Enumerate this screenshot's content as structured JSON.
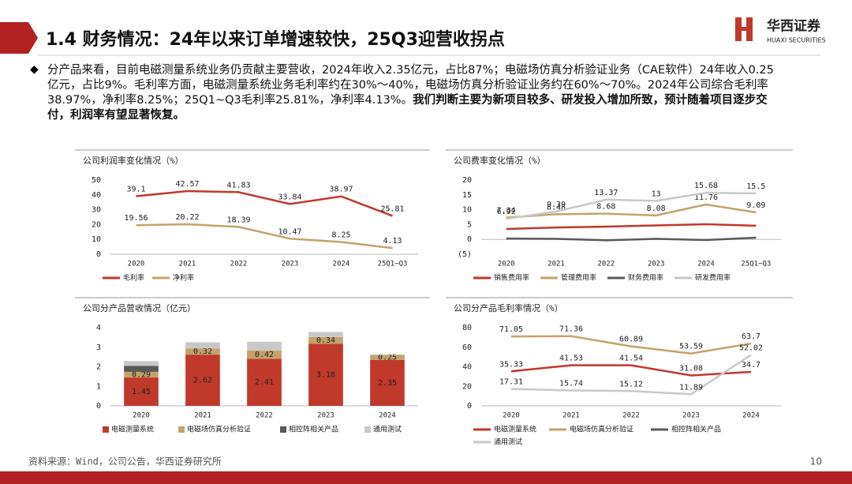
{
  "header": {
    "title": "1.4 财务情况：24年以来订单增速较快，25Q3迎营收拐点",
    "logo_cn": "华西证券",
    "logo_en": "HUAXI SECURITIES"
  },
  "bullet": {
    "body": "分产品来看，目前电磁测量系统业务仍贡献主要营收，2024年收入2.35亿元，占比87%；电磁场仿真分析验证业务（CAE软件）24年收入0.25亿元，占比9%。毛利率方面，电磁测量系统业务毛利率约在30%～40%，电磁场仿真分析验证业务约在60%～70%。2024年公司综合毛利率38.97%，净利率8.25%；25Q1~Q3毛利率25.81%，净利率4.13%。",
    "body_bold": "我们判断主要为新项目较多、研发投入增加所致，预计随着项目逐步交付，利润率有望显著恢复。"
  },
  "footer": {
    "source": "资料来源：Wind，公司公告，华西证券研究所",
    "page": "10"
  },
  "chart_data": [
    {
      "type": "line",
      "title": "公司利润率变化情况（%）",
      "categories": [
        "2020",
        "2021",
        "2022",
        "2023",
        "2024",
        "25Q1~Q3"
      ],
      "series": [
        {
          "name": "毛利率",
          "color": "#c0392b",
          "values": [
            39.1,
            42.57,
            41.83,
            33.84,
            38.97,
            25.81
          ]
        },
        {
          "name": "净利率",
          "color": "#c4a26a",
          "values": [
            19.56,
            20.22,
            18.39,
            10.47,
            8.25,
            4.13
          ]
        }
      ],
      "ylim": [
        0,
        50
      ],
      "yticks": [
        0,
        10,
        20,
        30,
        40,
        50
      ]
    },
    {
      "type": "line",
      "title": "公司费率变化情况（%）",
      "categories": [
        "2020",
        "2021",
        "2022",
        "2023",
        "2024",
        "25Q1~Q3"
      ],
      "series": [
        {
          "name": "销售费用率",
          "color": "#c0392b",
          "show_labels": false,
          "values": [
            3.5,
            4.0,
            4.3,
            4.7,
            5.1,
            4.6
          ]
        },
        {
          "name": "管理费用率",
          "color": "#c4a26a",
          "values": [
            7.34,
            8.48,
            8.68,
            8.08,
            11.76,
            9.09
          ]
        },
        {
          "name": "财务费用率",
          "color": "#595959",
          "show_labels": false,
          "values": [
            0.3,
            0.2,
            -0.3,
            0.2,
            -0.2,
            0.6
          ]
        },
        {
          "name": "研发费用率",
          "color": "#c8c8c8",
          "values": [
            6.92,
            9.39,
            13.37,
            13,
            15.68,
            15.5
          ]
        }
      ],
      "ylim": [
        -5,
        20
      ],
      "yticks": [
        {
          "value": -5,
          "label": "(5)"
        },
        0,
        5,
        10,
        15,
        20
      ]
    },
    {
      "type": "bar",
      "stacked": true,
      "title": "公司分产品营收情况（亿元）",
      "categories": [
        "2020",
        "2021",
        "2022",
        "2023",
        "2024"
      ],
      "series": [
        {
          "name": "电磁测量系统",
          "color": "#c0392b",
          "values": [
            1.45,
            2.62,
            2.41,
            3.18,
            2.35
          ]
        },
        {
          "name": "电磁场仿真分析验证",
          "color": "#c4a26a",
          "values": [
            0.29,
            0.32,
            0.42,
            0.34,
            0.25
          ]
        },
        {
          "name": "相控阵相关产品",
          "color": "#595959",
          "show_labels": false,
          "values": [
            0.3,
            0,
            0,
            0,
            0
          ]
        },
        {
          "name": "通用测试",
          "color": "#c8c8c8",
          "show_labels": false,
          "values": [
            0.25,
            0.31,
            0.45,
            0.26,
            0.03
          ]
        }
      ],
      "ylim": [
        0,
        4
      ],
      "yticks": [
        0,
        1,
        2,
        3,
        4
      ]
    },
    {
      "type": "line",
      "title": "公司分产品毛利率情况（%）",
      "categories": [
        "2020",
        "2021",
        "2022",
        "2023",
        "2024"
      ],
      "series": [
        {
          "name": "电磁测量系统",
          "color": "#c0392b",
          "values": [
            35.33,
            41.53,
            41.54,
            31.08,
            34.7
          ]
        },
        {
          "name": "电磁场仿真分析验证",
          "color": "#c4a26a",
          "values": [
            71.05,
            71.36,
            60.89,
            53.59,
            63.7
          ]
        },
        {
          "name": "相控阵相关产品",
          "color": "#595959",
          "values": [
            null,
            null,
            null,
            null,
            null
          ]
        },
        {
          "name": "通用测试",
          "color": "#c8c8c8",
          "values": [
            17.31,
            15.74,
            15.12,
            11.89,
            52.02
          ]
        }
      ],
      "ylim": [
        0,
        80
      ],
      "yticks": [
        0,
        20,
        40,
        60,
        80
      ]
    }
  ]
}
